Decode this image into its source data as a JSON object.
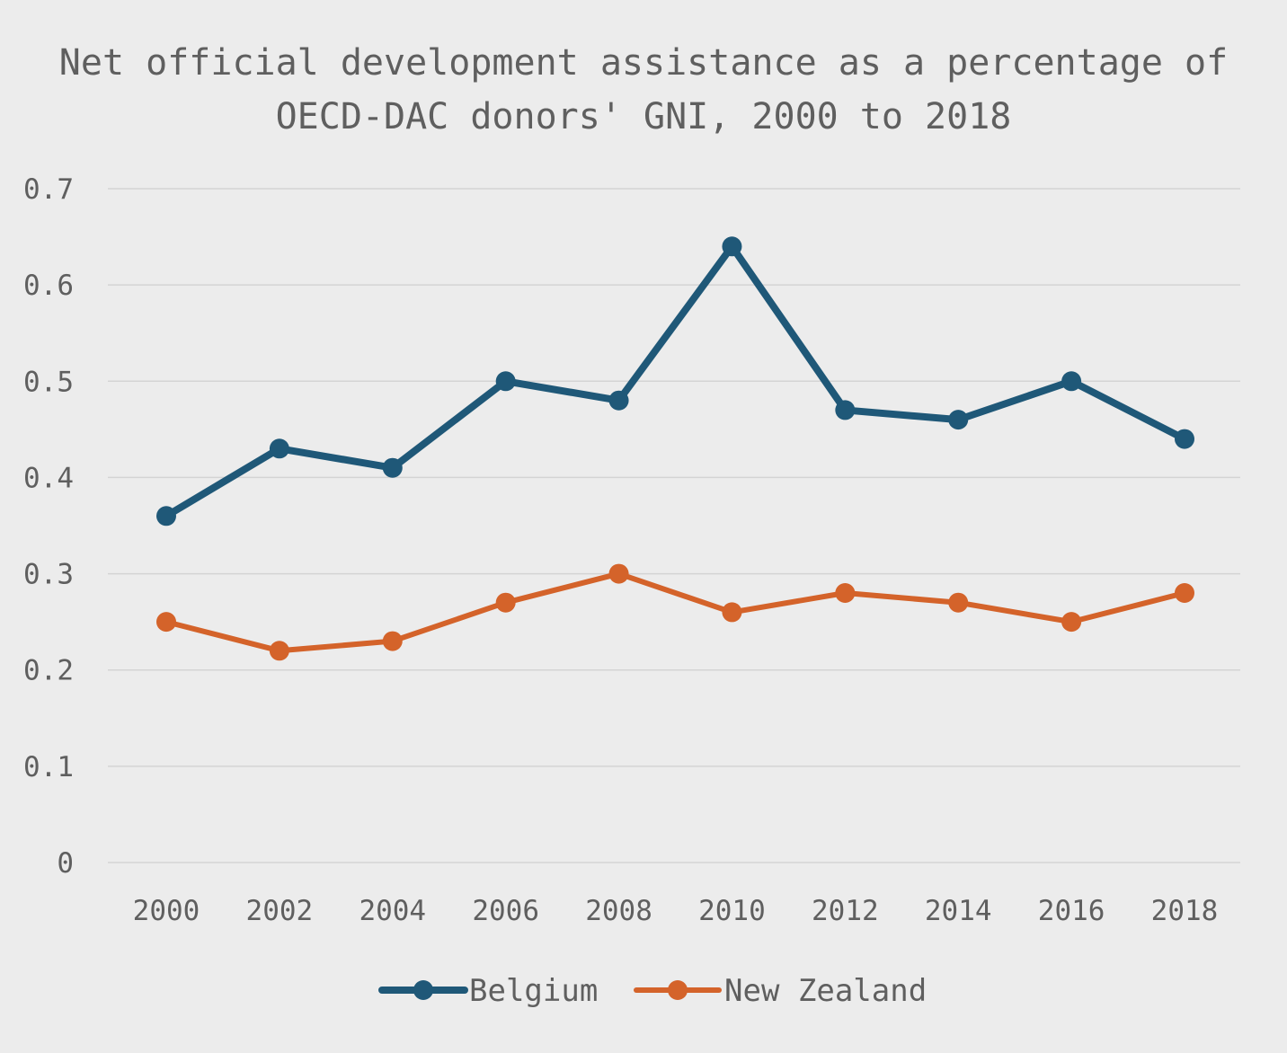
{
  "chart_data": {
    "type": "line",
    "title": "Net official development assistance as a percentage of OECD-DAC donors' GNI, 2000 to 2018",
    "title_lines": [
      "Net official development assistance as a percentage of",
      "OECD-DAC donors' GNI, 2000 to 2018"
    ],
    "xlabel": "",
    "ylabel": "",
    "x": [
      "2000",
      "2002",
      "2004",
      "2006",
      "2008",
      "2010",
      "2012",
      "2014",
      "2016",
      "2018"
    ],
    "y_ticks": [
      "0",
      "0.1",
      "0.2",
      "0.3",
      "0.4",
      "0.5",
      "0.6",
      "0.7"
    ],
    "ylim": [
      0,
      0.7
    ],
    "grid": true,
    "legend_position": "bottom",
    "series": [
      {
        "name": "Belgium",
        "color": "#1f5878",
        "values": [
          0.36,
          0.43,
          0.41,
          0.5,
          0.48,
          0.64,
          0.47,
          0.46,
          0.5,
          0.44
        ]
      },
      {
        "name": "New Zealand",
        "color": "#d4632a",
        "values": [
          0.25,
          0.22,
          0.23,
          0.27,
          0.3,
          0.26,
          0.28,
          0.27,
          0.25,
          0.28
        ]
      }
    ]
  }
}
